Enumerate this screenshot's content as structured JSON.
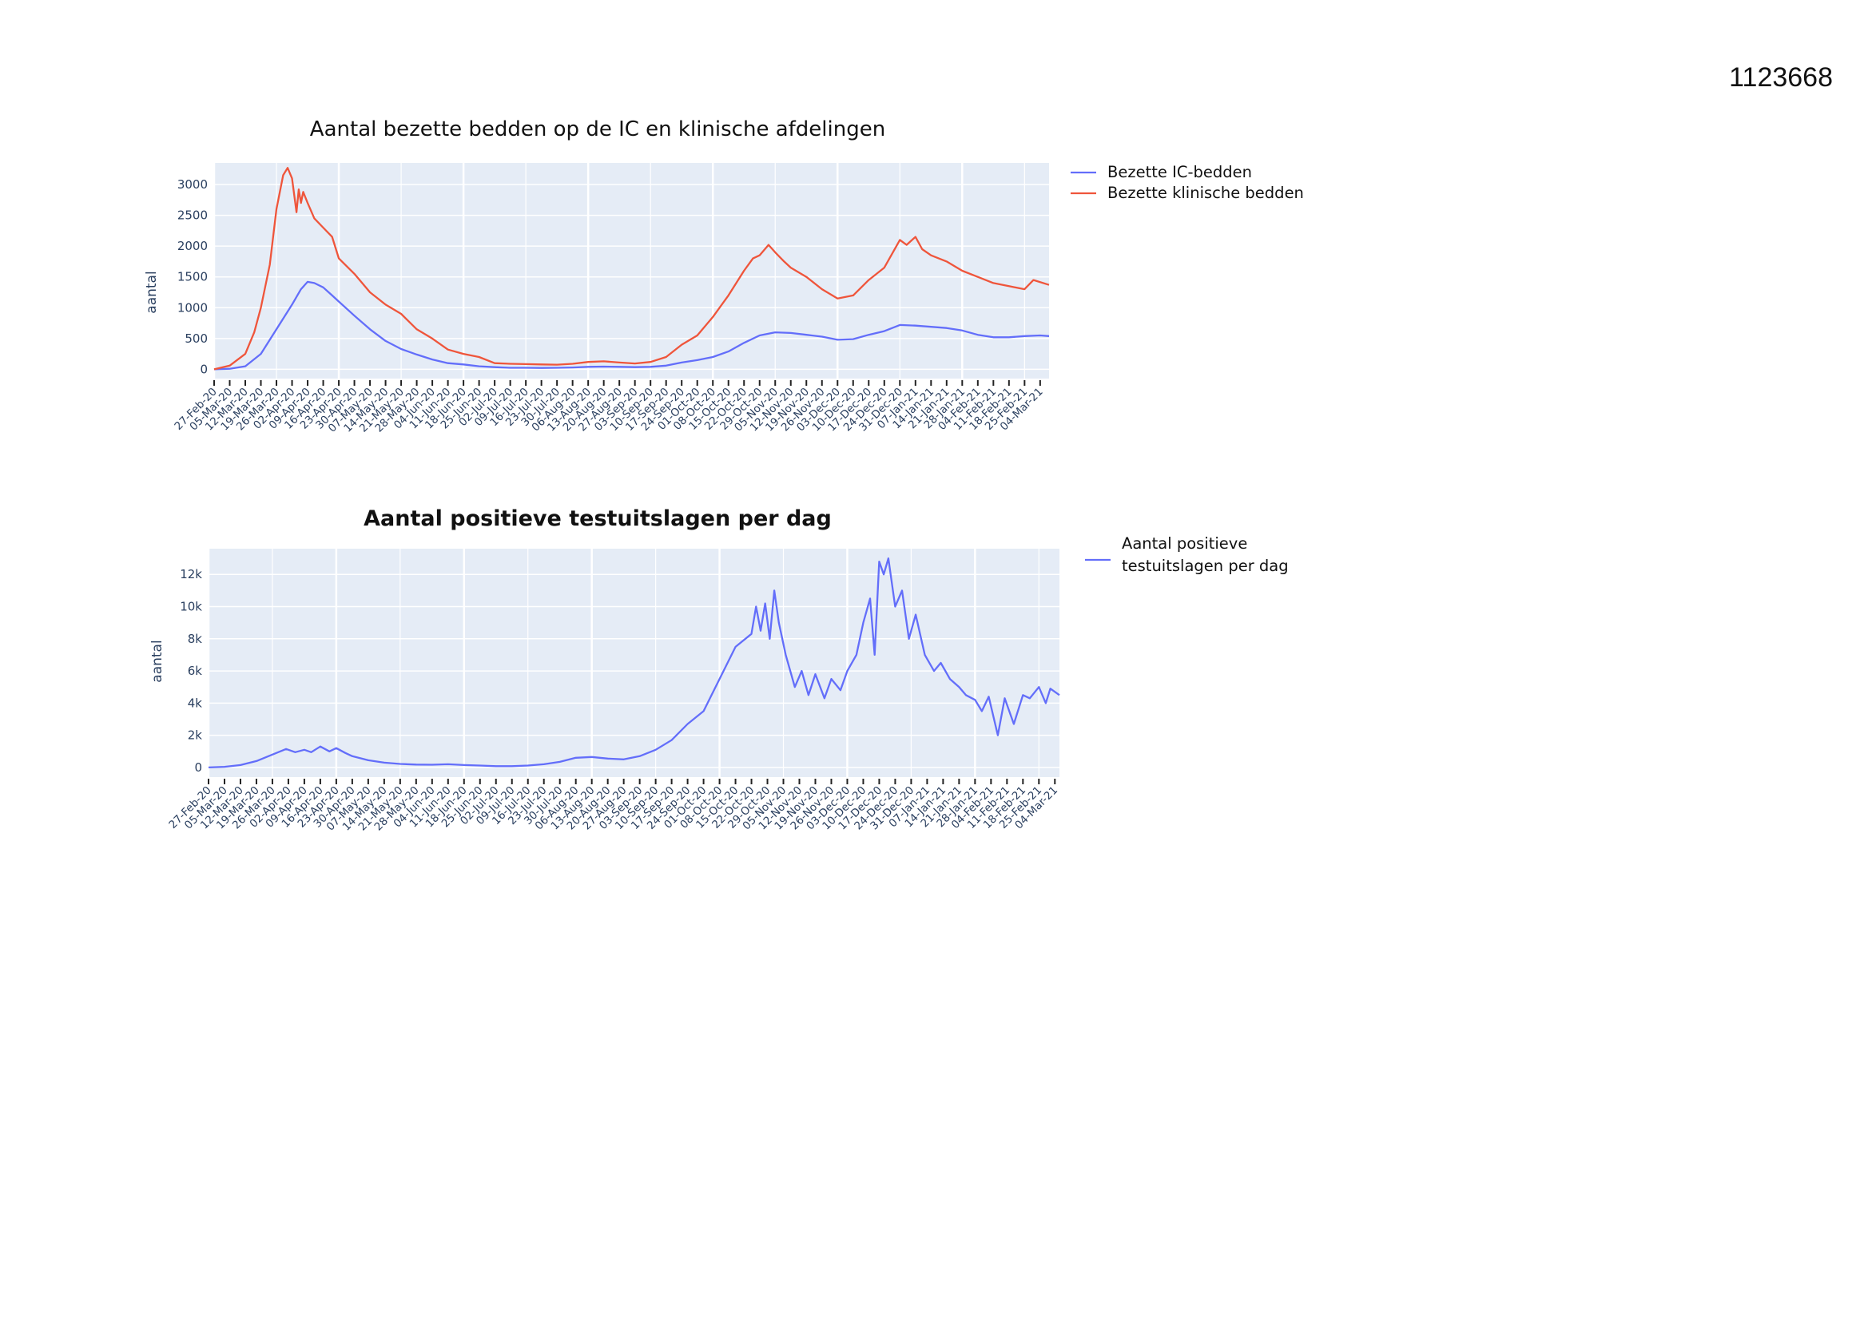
{
  "document": {
    "id": "1123668"
  },
  "chart_data": [
    {
      "type": "line",
      "title": "Aantal bezette bedden op de IC en klinische afdelingen",
      "ylabel": "aantal",
      "ylim": [
        -150,
        3350
      ],
      "yticks": [
        0,
        500,
        1000,
        1500,
        2000,
        2500,
        3000
      ],
      "ytick_labels": [
        "0",
        "500",
        "1000",
        "1500",
        "2000",
        "2500",
        "3000"
      ],
      "x_start": "2020-02-27",
      "x_end": "2021-03-08",
      "xtick_start": "2020-02-27",
      "xtick_end": "2021-03-04",
      "xtick_format": "DD-Mon-YY",
      "grid": true,
      "legend_position": "right",
      "series": [
        {
          "name": "Bezette IC-bedden",
          "color": "#636efa",
          "points": [
            [
              "2020-02-27",
              0
            ],
            [
              "2020-03-05",
              10
            ],
            [
              "2020-03-12",
              50
            ],
            [
              "2020-03-19",
              250
            ],
            [
              "2020-03-26",
              650
            ],
            [
              "2020-04-02",
              1050
            ],
            [
              "2020-04-06",
              1300
            ],
            [
              "2020-04-09",
              1420
            ],
            [
              "2020-04-12",
              1400
            ],
            [
              "2020-04-16",
              1330
            ],
            [
              "2020-04-20",
              1200
            ],
            [
              "2020-04-23",
              1100
            ],
            [
              "2020-04-30",
              870
            ],
            [
              "2020-05-07",
              650
            ],
            [
              "2020-05-14",
              460
            ],
            [
              "2020-05-21",
              330
            ],
            [
              "2020-05-28",
              240
            ],
            [
              "2020-06-04",
              160
            ],
            [
              "2020-06-11",
              100
            ],
            [
              "2020-06-18",
              80
            ],
            [
              "2020-06-25",
              50
            ],
            [
              "2020-07-02",
              35
            ],
            [
              "2020-07-09",
              25
            ],
            [
              "2020-07-16",
              25
            ],
            [
              "2020-07-23",
              22
            ],
            [
              "2020-07-30",
              25
            ],
            [
              "2020-08-06",
              30
            ],
            [
              "2020-08-13",
              40
            ],
            [
              "2020-08-20",
              45
            ],
            [
              "2020-08-27",
              40
            ],
            [
              "2020-09-03",
              35
            ],
            [
              "2020-09-10",
              40
            ],
            [
              "2020-09-17",
              60
            ],
            [
              "2020-09-24",
              110
            ],
            [
              "2020-10-01",
              150
            ],
            [
              "2020-10-08",
              200
            ],
            [
              "2020-10-15",
              290
            ],
            [
              "2020-10-22",
              430
            ],
            [
              "2020-10-29",
              550
            ],
            [
              "2020-11-05",
              600
            ],
            [
              "2020-11-12",
              590
            ],
            [
              "2020-11-19",
              560
            ],
            [
              "2020-11-26",
              530
            ],
            [
              "2020-12-03",
              480
            ],
            [
              "2020-12-10",
              490
            ],
            [
              "2020-12-17",
              560
            ],
            [
              "2020-12-24",
              620
            ],
            [
              "2020-12-31",
              720
            ],
            [
              "2021-01-07",
              710
            ],
            [
              "2021-01-14",
              690
            ],
            [
              "2021-01-21",
              670
            ],
            [
              "2021-01-28",
              630
            ],
            [
              "2021-02-04",
              560
            ],
            [
              "2021-02-11",
              520
            ],
            [
              "2021-02-18",
              520
            ],
            [
              "2021-02-25",
              540
            ],
            [
              "2021-03-04",
              550
            ],
            [
              "2021-03-08",
              540
            ]
          ]
        },
        {
          "name": "Bezette klinische bedden",
          "color": "#ef553b",
          "points": [
            [
              "2020-02-27",
              0
            ],
            [
              "2020-03-05",
              60
            ],
            [
              "2020-03-12",
              250
            ],
            [
              "2020-03-16",
              600
            ],
            [
              "2020-03-19",
              1000
            ],
            [
              "2020-03-23",
              1700
            ],
            [
              "2020-03-26",
              2600
            ],
            [
              "2020-03-29",
              3150
            ],
            [
              "2020-03-31",
              3270
            ],
            [
              "2020-04-02",
              3100
            ],
            [
              "2020-04-04",
              2550
            ],
            [
              "2020-04-05",
              2920
            ],
            [
              "2020-04-06",
              2700
            ],
            [
              "2020-04-07",
              2880
            ],
            [
              "2020-04-09",
              2700
            ],
            [
              "2020-04-12",
              2450
            ],
            [
              "2020-04-16",
              2300
            ],
            [
              "2020-04-20",
              2150
            ],
            [
              "2020-04-23",
              1800
            ],
            [
              "2020-04-30",
              1550
            ],
            [
              "2020-05-07",
              1250
            ],
            [
              "2020-05-14",
              1050
            ],
            [
              "2020-05-21",
              900
            ],
            [
              "2020-05-28",
              650
            ],
            [
              "2020-06-04",
              500
            ],
            [
              "2020-06-11",
              320
            ],
            [
              "2020-06-18",
              250
            ],
            [
              "2020-06-25",
              200
            ],
            [
              "2020-07-02",
              100
            ],
            [
              "2020-07-09",
              90
            ],
            [
              "2020-07-16",
              85
            ],
            [
              "2020-07-23",
              80
            ],
            [
              "2020-07-30",
              75
            ],
            [
              "2020-08-06",
              90
            ],
            [
              "2020-08-13",
              120
            ],
            [
              "2020-08-20",
              130
            ],
            [
              "2020-08-27",
              110
            ],
            [
              "2020-09-03",
              95
            ],
            [
              "2020-09-10",
              120
            ],
            [
              "2020-09-17",
              200
            ],
            [
              "2020-09-24",
              400
            ],
            [
              "2020-10-01",
              550
            ],
            [
              "2020-10-08",
              850
            ],
            [
              "2020-10-15",
              1200
            ],
            [
              "2020-10-22",
              1600
            ],
            [
              "2020-10-26",
              1800
            ],
            [
              "2020-10-29",
              1850
            ],
            [
              "2020-11-02",
              2020
            ],
            [
              "2020-11-05",
              1900
            ],
            [
              "2020-11-09",
              1750
            ],
            [
              "2020-11-12",
              1650
            ],
            [
              "2020-11-19",
              1500
            ],
            [
              "2020-11-26",
              1300
            ],
            [
              "2020-12-03",
              1150
            ],
            [
              "2020-12-10",
              1200
            ],
            [
              "2020-12-17",
              1450
            ],
            [
              "2020-12-24",
              1650
            ],
            [
              "2020-12-31",
              2100
            ],
            [
              "2021-01-03",
              2020
            ],
            [
              "2021-01-07",
              2150
            ],
            [
              "2021-01-10",
              1950
            ],
            [
              "2021-01-14",
              1850
            ],
            [
              "2021-01-21",
              1750
            ],
            [
              "2021-01-28",
              1600
            ],
            [
              "2021-02-04",
              1500
            ],
            [
              "2021-02-11",
              1400
            ],
            [
              "2021-02-18",
              1350
            ],
            [
              "2021-02-25",
              1300
            ],
            [
              "2021-03-01",
              1450
            ],
            [
              "2021-03-08",
              1370
            ]
          ]
        }
      ]
    },
    {
      "type": "line",
      "title": "Aantal positieve testuitslagen per dag",
      "ylabel": "aantal",
      "ylim": [
        -600,
        13600
      ],
      "yticks": [
        0,
        2000,
        4000,
        6000,
        8000,
        10000,
        12000
      ],
      "ytick_labels": [
        "0",
        "2k",
        "4k",
        "6k",
        "8k",
        "10k",
        "12k"
      ],
      "x_start": "2020-02-27",
      "x_end": "2021-03-06",
      "xtick_start": "2020-02-27",
      "xtick_end": "2021-03-04",
      "xtick_format": "DD-Mon-YY",
      "grid": true,
      "legend_position": "right",
      "series": [
        {
          "name": "Aantal positieve testuitslagen per dag",
          "color": "#636efa",
          "points": [
            [
              "2020-02-27",
              0
            ],
            [
              "2020-03-05",
              40
            ],
            [
              "2020-03-12",
              150
            ],
            [
              "2020-03-19",
              400
            ],
            [
              "2020-03-26",
              800
            ],
            [
              "2020-04-01",
              1150
            ],
            [
              "2020-04-05",
              950
            ],
            [
              "2020-04-09",
              1100
            ],
            [
              "2020-04-12",
              950
            ],
            [
              "2020-04-16",
              1300
            ],
            [
              "2020-04-20",
              1000
            ],
            [
              "2020-04-23",
              1200
            ],
            [
              "2020-04-27",
              900
            ],
            [
              "2020-04-30",
              700
            ],
            [
              "2020-05-07",
              450
            ],
            [
              "2020-05-14",
              300
            ],
            [
              "2020-05-21",
              220
            ],
            [
              "2020-05-28",
              180
            ],
            [
              "2020-06-04",
              170
            ],
            [
              "2020-06-11",
              200
            ],
            [
              "2020-06-18",
              150
            ],
            [
              "2020-06-25",
              120
            ],
            [
              "2020-07-02",
              80
            ],
            [
              "2020-07-09",
              80
            ],
            [
              "2020-07-16",
              120
            ],
            [
              "2020-07-23",
              200
            ],
            [
              "2020-07-30",
              350
            ],
            [
              "2020-08-06",
              600
            ],
            [
              "2020-08-13",
              650
            ],
            [
              "2020-08-20",
              550
            ],
            [
              "2020-08-27",
              500
            ],
            [
              "2020-09-03",
              700
            ],
            [
              "2020-09-10",
              1100
            ],
            [
              "2020-09-17",
              1700
            ],
            [
              "2020-09-24",
              2700
            ],
            [
              "2020-10-01",
              3500
            ],
            [
              "2020-10-08",
              5500
            ],
            [
              "2020-10-15",
              7500
            ],
            [
              "2020-10-22",
              8300
            ],
            [
              "2020-10-24",
              10000
            ],
            [
              "2020-10-26",
              8500
            ],
            [
              "2020-10-28",
              10200
            ],
            [
              "2020-10-30",
              8000
            ],
            [
              "2020-11-01",
              11000
            ],
            [
              "2020-11-03",
              9000
            ],
            [
              "2020-11-06",
              7000
            ],
            [
              "2020-11-10",
              5000
            ],
            [
              "2020-11-13",
              6000
            ],
            [
              "2020-11-16",
              4500
            ],
            [
              "2020-11-19",
              5800
            ],
            [
              "2020-11-23",
              4300
            ],
            [
              "2020-11-26",
              5500
            ],
            [
              "2020-11-30",
              4800
            ],
            [
              "2020-12-03",
              6000
            ],
            [
              "2020-12-07",
              7000
            ],
            [
              "2020-12-10",
              9000
            ],
            [
              "2020-12-13",
              10500
            ],
            [
              "2020-12-15",
              7000
            ],
            [
              "2020-12-17",
              12800
            ],
            [
              "2020-12-19",
              12000
            ],
            [
              "2020-12-21",
              13000
            ],
            [
              "2020-12-24",
              10000
            ],
            [
              "2020-12-27",
              11000
            ],
            [
              "2020-12-30",
              8000
            ],
            [
              "2021-01-02",
              9500
            ],
            [
              "2021-01-06",
              7000
            ],
            [
              "2021-01-10",
              6000
            ],
            [
              "2021-01-13",
              6500
            ],
            [
              "2021-01-17",
              5500
            ],
            [
              "2021-01-21",
              5000
            ],
            [
              "2021-01-24",
              4500
            ],
            [
              "2021-01-28",
              4200
            ],
            [
              "2021-01-31",
              3500
            ],
            [
              "2021-02-03",
              4400
            ],
            [
              "2021-02-07",
              2000
            ],
            [
              "2021-02-10",
              4300
            ],
            [
              "2021-02-14",
              2700
            ],
            [
              "2021-02-18",
              4500
            ],
            [
              "2021-02-21",
              4300
            ],
            [
              "2021-02-25",
              5000
            ],
            [
              "2021-02-28",
              4000
            ],
            [
              "2021-03-02",
              4900
            ],
            [
              "2021-03-06",
              4500
            ]
          ]
        }
      ]
    }
  ]
}
